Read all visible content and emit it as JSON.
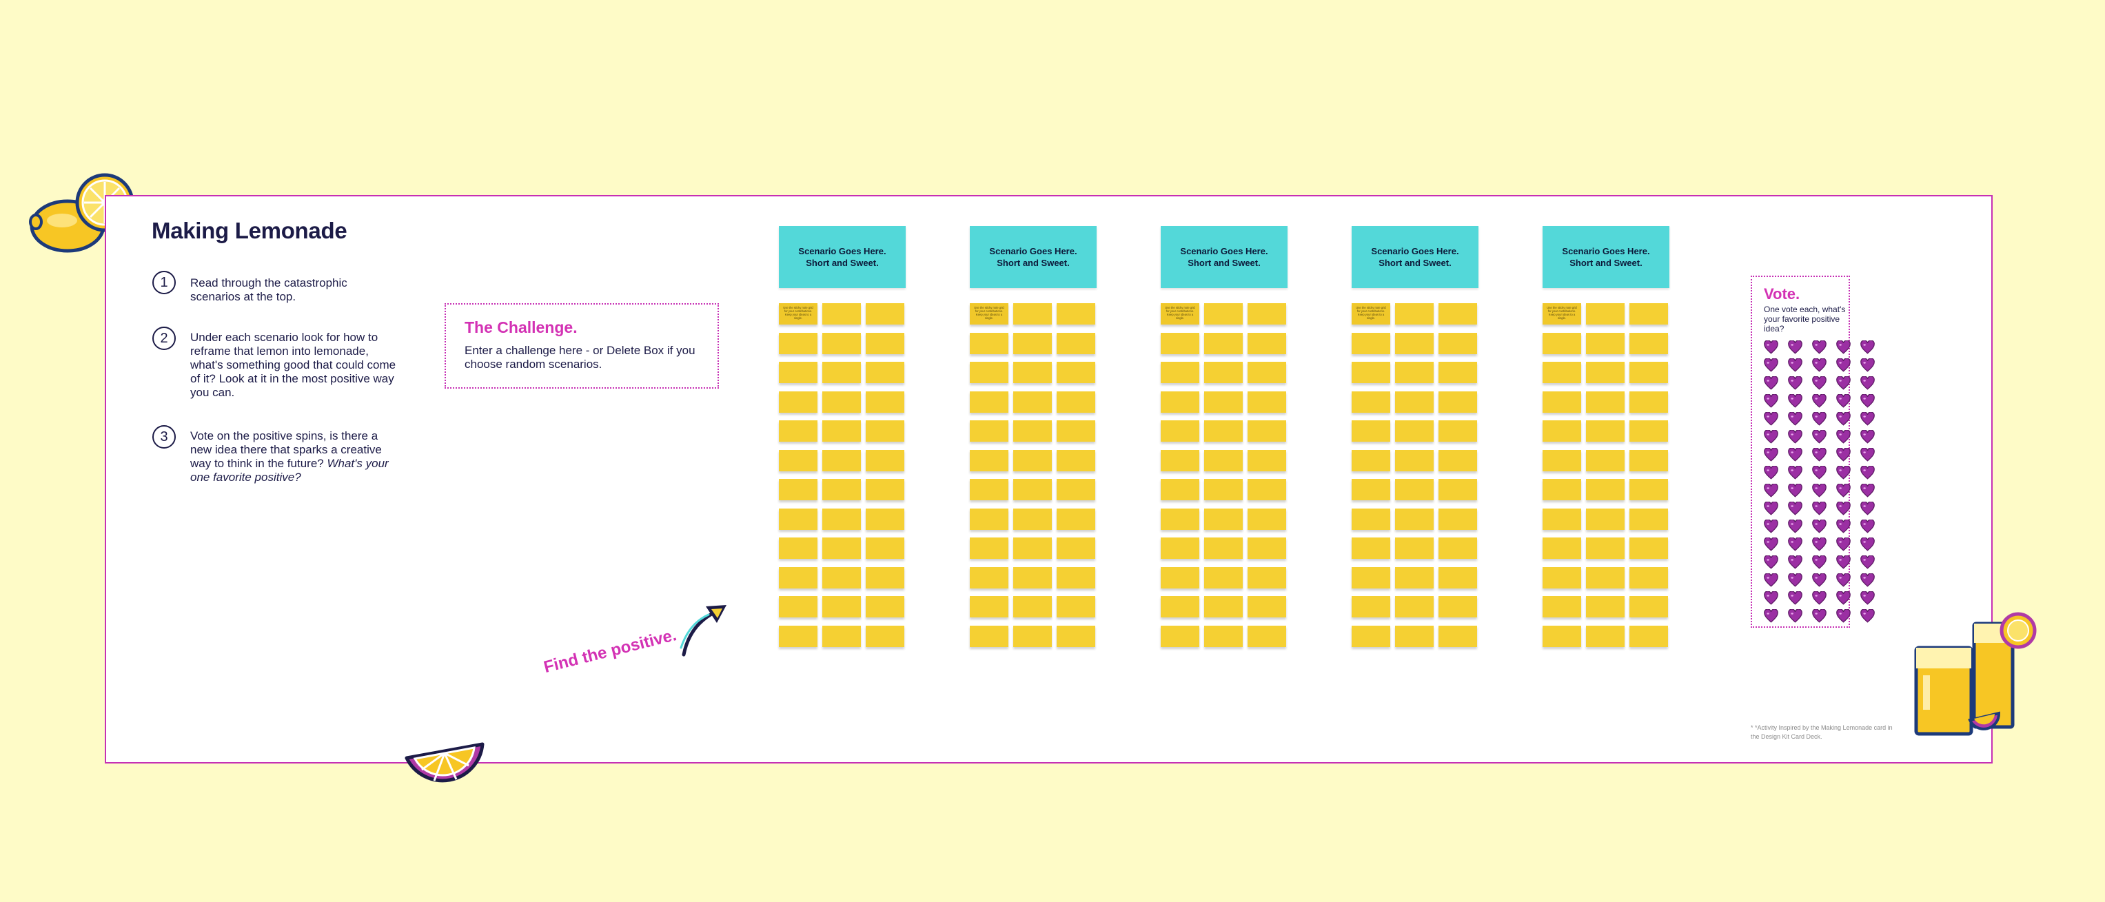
{
  "intro": {
    "title": "Making Lemonade",
    "steps": [
      {
        "number": "1",
        "text": "Read through the catastrophic scenarios at the top."
      },
      {
        "number": "2",
        "text": "Under each scenario look for how to reframe that lemon into lemonade, what's something good that could come of it? Look at it in the most positive way you can."
      },
      {
        "number": "3",
        "text": "Vote on the positive spins, is there a new idea there that sparks a creative way to think in the future?",
        "emphasis": "What's your one favorite positive?"
      }
    ]
  },
  "challenge": {
    "title": "The Challenge.",
    "body": "Enter a challenge here - or Delete Box if you choose random scenarios."
  },
  "find_positive": "Find the positive.",
  "scenarios": [
    {
      "label": "Scenario Goes Here. Short and Sweet.",
      "note": "Use the sticky note grid for your contributions. Keep your ideas to a single."
    },
    {
      "label": "Scenario Goes Here. Short and Sweet.",
      "note": "Use the sticky note grid for your contributions. Keep your ideas to a single."
    },
    {
      "label": "Scenario Goes Here. Short and Sweet.",
      "note": "Use the sticky note grid for your contributions. Keep your ideas to a single."
    },
    {
      "label": "Scenario Goes Here. Short and Sweet.",
      "note": "Use the sticky note grid for your contributions. Keep your ideas to a single."
    },
    {
      "label": "Scenario Goes Here. Short and Sweet.",
      "note": "Use the sticky note grid for your contributions. Keep your ideas to a single."
    }
  ],
  "sticky_rows": 12,
  "sticky_cols": 3,
  "vote": {
    "title": "Vote.",
    "subtitle": "One vote each, what's your favorite positive idea?",
    "heart_rows": 16,
    "heart_cols": 5
  },
  "footnote": "* *Activity Inspired by the Making Lemonade card in the Design Kit Card Deck.",
  "colors": {
    "background": "#fefbc7",
    "frame": "#c62fb4",
    "accent": "#d332b4",
    "scenario": "#53d8d9",
    "sticky": "#f5d033",
    "heart": "#9b2fa3",
    "text": "#1c1b47"
  },
  "decorations": [
    "lemon-icon",
    "lemon-slice-icon",
    "lemonade-glasses-icon",
    "curved-arrow-icon",
    "heart-icon"
  ]
}
